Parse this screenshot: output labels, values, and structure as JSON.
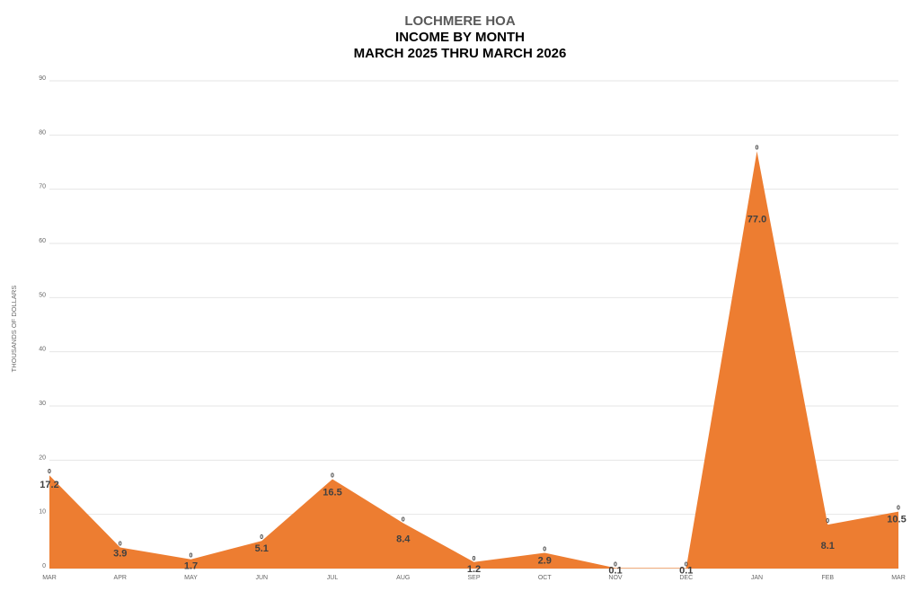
{
  "chart_data": {
    "type": "area",
    "title": "LOCHMERE HOA",
    "subtitle_1": "INCOME BY MONTH",
    "subtitle_2": "MARCH 2025 THRU MARCH 2026",
    "xlabel": "",
    "ylabel": "THOUSANDS OF DOLLARS",
    "ylim": [
      0,
      90
    ],
    "yticks": [
      0,
      10,
      20,
      30,
      40,
      50,
      60,
      70,
      80,
      90
    ],
    "grid": true,
    "categories": [
      "MAR",
      "APR",
      "MAY",
      "JUN",
      "JUL",
      "AUG",
      "SEP",
      "OCT",
      "NOV",
      "DEC",
      "JAN",
      "FEB",
      "MAR"
    ],
    "values": [
      17.2,
      3.9,
      1.7,
      5.1,
      16.5,
      8.4,
      1.2,
      2.9,
      0.1,
      0.1,
      77.0,
      8.1,
      10.5
    ],
    "data_labels": [
      "17.2",
      "3.9",
      "1.7",
      "5.1",
      "16.5",
      "8.4",
      "1.2",
      "2.9",
      "0.1",
      "0.1",
      "77.0",
      "8.1",
      "10.5"
    ],
    "point_label": "0",
    "fill_color": "#ED7D31",
    "grid_color": "#E6E6E6"
  }
}
